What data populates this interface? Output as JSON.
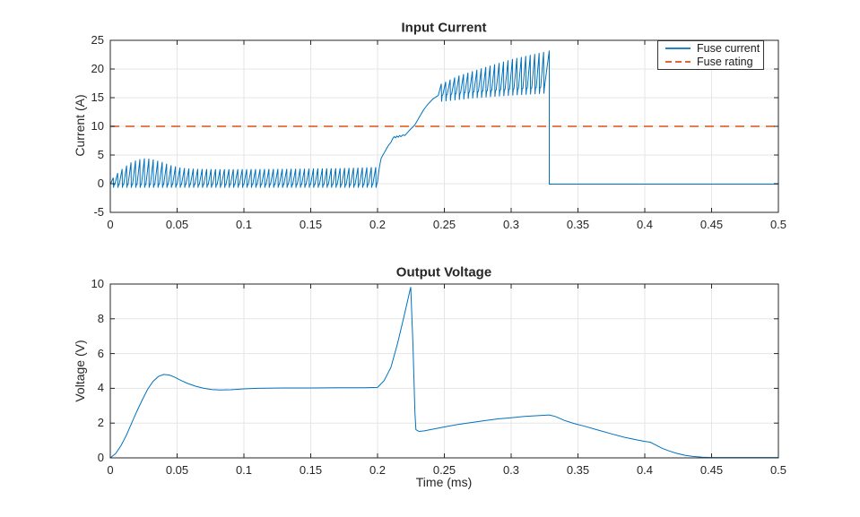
{
  "figure": {
    "background": "#ffffff",
    "axis_color": "#262626",
    "grid_color": "#e6e6e6",
    "text_color": "#262626",
    "series_blue": "#0072BD",
    "series_orange": "#D95319"
  },
  "chart_data": [
    {
      "type": "line",
      "title": "Input Current",
      "xlabel": "",
      "ylabel": "Current (A)",
      "xlim": [
        0,
        0.5
      ],
      "ylim": [
        -5,
        25
      ],
      "xticks": [
        0,
        0.05,
        0.1,
        0.15,
        0.2,
        0.25,
        0.3,
        0.35,
        0.4,
        0.45,
        0.5
      ],
      "yticks": [
        -5,
        0,
        5,
        10,
        15,
        20,
        25
      ],
      "grid": true,
      "legend": {
        "position": "northeast",
        "entries": [
          {
            "label": "Fuse current",
            "color": "#0072BD",
            "line_style": "solid"
          },
          {
            "label": "Fuse rating",
            "color": "#D95319",
            "line_style": "dashed"
          }
        ]
      },
      "series": [
        {
          "name": "Fuse current",
          "color": "#0072BD",
          "style": "solid",
          "synthesis": {
            "switching_phase": {
              "t_start": 0,
              "t_end": 0.2,
              "period": 0.00333,
              "undershoot": -0.7,
              "peak_envelope": [
                [
                  0,
                  0.6
                ],
                [
                  0.003,
                  1.4
                ],
                [
                  0.006,
                  2.1
                ],
                [
                  0.01,
                  2.9
                ],
                [
                  0.015,
                  3.7
                ],
                [
                  0.02,
                  4.2
                ],
                [
                  0.026,
                  4.45
                ],
                [
                  0.032,
                  4.2
                ],
                [
                  0.038,
                  3.8
                ],
                [
                  0.045,
                  3.2
                ],
                [
                  0.052,
                  2.8
                ],
                [
                  0.06,
                  2.6
                ],
                [
                  0.08,
                  2.5
                ],
                [
                  0.11,
                  2.55
                ],
                [
                  0.14,
                  2.6
                ],
                [
                  0.17,
                  2.7
                ],
                [
                  0.199,
                  2.9
                ]
              ]
            },
            "fault_rise": [
              [
                0.2,
                0.3
              ],
              [
                0.2005,
                1.2
              ],
              [
                0.201,
                2.3
              ],
              [
                0.2018,
                3.4
              ],
              [
                0.2027,
                4.4
              ],
              [
                0.204,
                5.0
              ],
              [
                0.2055,
                5.6
              ],
              [
                0.207,
                6.2
              ],
              [
                0.2085,
                6.8
              ],
              [
                0.21,
                7.2
              ],
              [
                0.2115,
                7.9
              ],
              [
                0.2125,
                8.2
              ],
              [
                0.2135,
                8.0
              ],
              [
                0.2145,
                8.3
              ],
              [
                0.2155,
                8.1
              ],
              [
                0.2165,
                8.4
              ],
              [
                0.2175,
                8.2
              ],
              [
                0.219,
                8.5
              ],
              [
                0.2205,
                8.4
              ],
              [
                0.222,
                8.8
              ],
              [
                0.2235,
                9.2
              ],
              [
                0.225,
                9.6
              ],
              [
                0.2265,
                9.9
              ],
              [
                0.228,
                10.3
              ],
              [
                0.2295,
                10.9
              ],
              [
                0.231,
                11.5
              ],
              [
                0.2325,
                12.1
              ],
              [
                0.234,
                12.7
              ],
              [
                0.2355,
                13.2
              ],
              [
                0.2375,
                13.8
              ],
              [
                0.2395,
                14.3
              ],
              [
                0.2415,
                14.8
              ],
              [
                0.2435,
                15.1
              ],
              [
                0.2455,
                15.4
              ]
            ],
            "spike_phase": {
              "t_start": 0.2455,
              "t_end": 0.3285,
              "period": 0.00333,
              "undershoot_delta": 1.3,
              "base_envelope": [
                [
                  0.2455,
                  15.6
                ],
                [
                  0.27,
                  16.2
                ],
                [
                  0.3,
                  16.7
                ],
                [
                  0.3285,
                  17.1
                ]
              ],
              "peak_envelope": [
                [
                  0.2455,
                  17.2
                ],
                [
                  0.26,
                  18.8
                ],
                [
                  0.28,
                  20.3
                ],
                [
                  0.3,
                  21.7
                ],
                [
                  0.315,
                  22.5
                ],
                [
                  0.3285,
                  23.2
                ]
              ]
            },
            "fault_clear_time": 0.3285,
            "final_peak": 23.2,
            "post_clear_value": -0.08
          }
        },
        {
          "name": "Fuse rating",
          "color": "#D95319",
          "style": "dashed",
          "constant_value": 10
        }
      ]
    },
    {
      "type": "line",
      "title": "Output Voltage",
      "xlabel": "Time (ms)",
      "ylabel": "Voltage (V)",
      "xlim": [
        0,
        0.5
      ],
      "ylim": [
        0,
        10
      ],
      "xticks": [
        0,
        0.05,
        0.1,
        0.15,
        0.2,
        0.25,
        0.3,
        0.35,
        0.4,
        0.45,
        0.5
      ],
      "yticks": [
        0,
        2,
        4,
        6,
        8,
        10
      ],
      "grid": true,
      "series": [
        {
          "name": "Output voltage",
          "color": "#0072BD",
          "style": "solid",
          "points": [
            [
              0,
              0
            ],
            [
              0.004,
              0.25
            ],
            [
              0.008,
              0.7
            ],
            [
              0.012,
              1.3
            ],
            [
              0.016,
              2.0
            ],
            [
              0.02,
              2.7
            ],
            [
              0.024,
              3.35
            ],
            [
              0.028,
              3.95
            ],
            [
              0.032,
              4.4
            ],
            [
              0.036,
              4.68
            ],
            [
              0.04,
              4.8
            ],
            [
              0.044,
              4.77
            ],
            [
              0.048,
              4.65
            ],
            [
              0.053,
              4.45
            ],
            [
              0.058,
              4.28
            ],
            [
              0.064,
              4.12
            ],
            [
              0.07,
              4.0
            ],
            [
              0.076,
              3.93
            ],
            [
              0.082,
              3.9
            ],
            [
              0.09,
              3.92
            ],
            [
              0.1,
              3.97
            ],
            [
              0.11,
              4.0
            ],
            [
              0.13,
              4.02
            ],
            [
              0.15,
              4.02
            ],
            [
              0.17,
              4.03
            ],
            [
              0.19,
              4.03
            ],
            [
              0.2,
              4.05
            ],
            [
              0.205,
              4.45
            ],
            [
              0.21,
              5.2
            ],
            [
              0.215,
              6.6
            ],
            [
              0.22,
              8.2
            ],
            [
              0.2248,
              9.83
            ],
            [
              0.2265,
              6.5
            ],
            [
              0.228,
              2.6
            ],
            [
              0.2287,
              1.62
            ],
            [
              0.231,
              1.52
            ],
            [
              0.235,
              1.55
            ],
            [
              0.24,
              1.63
            ],
            [
              0.25,
              1.78
            ],
            [
              0.26,
              1.92
            ],
            [
              0.27,
              2.03
            ],
            [
              0.28,
              2.14
            ],
            [
              0.29,
              2.24
            ],
            [
              0.3,
              2.31
            ],
            [
              0.31,
              2.38
            ],
            [
              0.32,
              2.43
            ],
            [
              0.3285,
              2.47
            ],
            [
              0.333,
              2.38
            ],
            [
              0.34,
              2.15
            ],
            [
              0.347,
              1.98
            ],
            [
              0.355,
              1.82
            ],
            [
              0.365,
              1.6
            ],
            [
              0.375,
              1.38
            ],
            [
              0.385,
              1.18
            ],
            [
              0.395,
              1.02
            ],
            [
              0.4,
              0.95
            ],
            [
              0.404,
              0.9
            ],
            [
              0.408,
              0.75
            ],
            [
              0.413,
              0.55
            ],
            [
              0.418,
              0.4
            ],
            [
              0.424,
              0.26
            ],
            [
              0.43,
              0.15
            ],
            [
              0.436,
              0.08
            ],
            [
              0.443,
              0.04
            ],
            [
              0.45,
              0.02
            ],
            [
              0.46,
              0.02
            ],
            [
              0.48,
              0.02
            ],
            [
              0.5,
              0.02
            ]
          ]
        }
      ]
    }
  ]
}
